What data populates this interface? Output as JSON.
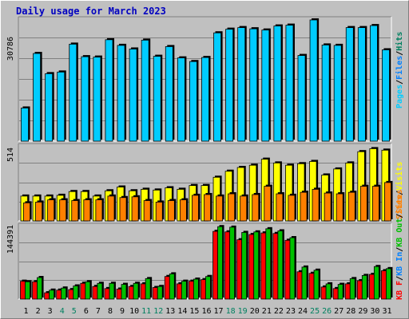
{
  "title": "Daily usage for March 2023",
  "colors": {
    "background": "#c0c0c0",
    "panel": "#c0c0c0",
    "gridline": "#808080",
    "pages": "#00ccff",
    "files": "#0080ff",
    "hits": "#008060",
    "visits": "#ffff00",
    "sites": "#ff8000",
    "kb_out": "#00c000",
    "kb_in": "#0080ff",
    "kb_f": "#ff0000",
    "title": "#0000c0",
    "weekend_day": "#008060",
    "weekday": "#000000"
  },
  "chart_data": [
    {
      "type": "bar",
      "panel": "top",
      "axis_label": "30786",
      "ymax": 30786,
      "legend": [
        "Pages",
        "/",
        "Files",
        "/",
        "Hits"
      ],
      "series": [
        {
          "name": "Pages",
          "values": [
            8200,
            21700,
            16700,
            17100,
            24000,
            20900,
            20800,
            25100,
            23700,
            22800,
            25000,
            21000,
            23400,
            20600,
            19700,
            20700,
            26800,
            27700,
            28100,
            27800,
            27500,
            28500,
            28700,
            21200,
            30000,
            23800,
            23700,
            28100,
            28100,
            28600,
            22600
          ]
        }
      ],
      "categories": [
        "1",
        "2",
        "3",
        "4",
        "5",
        "6",
        "7",
        "8",
        "9",
        "10",
        "11",
        "12",
        "13",
        "14",
        "15",
        "16",
        "17",
        "18",
        "19",
        "20",
        "21",
        "22",
        "23",
        "24",
        "25",
        "26",
        "27",
        "28",
        "29",
        "30",
        "31"
      ]
    },
    {
      "type": "bar",
      "panel": "middle",
      "axis_label": "514",
      "ymax": 514,
      "legend": [
        "Visits",
        "/",
        "Sites"
      ],
      "series": [
        {
          "name": "Visits",
          "values": [
            165,
            165,
            165,
            170,
            195,
            195,
            165,
            200,
            225,
            200,
            210,
            205,
            220,
            210,
            235,
            235,
            290,
            330,
            355,
            370,
            410,
            385,
            370,
            380,
            395,
            305,
            345,
            385,
            460,
            480,
            470
          ]
        },
        {
          "name": "Sites",
          "values": [
            120,
            125,
            140,
            140,
            135,
            140,
            140,
            165,
            155,
            160,
            135,
            125,
            135,
            140,
            170,
            175,
            165,
            180,
            165,
            175,
            230,
            180,
            170,
            190,
            210,
            185,
            180,
            190,
            230,
            230,
            255
          ]
        }
      ]
    },
    {
      "type": "bar",
      "panel": "bottom",
      "axis_label": "144391",
      "ymax": 144391,
      "legend": [
        "KB F",
        "/",
        "KB In",
        "/",
        "KB Out",
        "/",
        "Sites"
      ],
      "series": [
        {
          "name": "KB F",
          "values": [
            34000,
            33000,
            12000,
            17000,
            18000,
            30000,
            24000,
            20000,
            19000,
            24000,
            29000,
            22000,
            43000,
            29000,
            34000,
            37000,
            129000,
            128000,
            113000,
            123000,
            126000,
            125000,
            112000,
            52000,
            49000,
            23000,
            20000,
            29000,
            35000,
            47000,
            54000
          ]
        },
        {
          "name": "KB Out",
          "values": [
            33000,
            41000,
            17000,
            21000,
            25000,
            33000,
            30000,
            30000,
            28000,
            30000,
            39000,
            24000,
            48000,
            34000,
            38000,
            43000,
            138000,
            137000,
            127000,
            128000,
            134000,
            130000,
            117000,
            61000,
            55000,
            29000,
            28000,
            39000,
            45000,
            62000,
            58000
          ]
        }
      ]
    }
  ],
  "x_labels": [
    "1",
    "2",
    "3",
    "4",
    "5",
    "6",
    "7",
    "8",
    "9",
    "10",
    "11",
    "12",
    "13",
    "14",
    "15",
    "16",
    "17",
    "18",
    "19",
    "20",
    "21",
    "22",
    "23",
    "24",
    "25",
    "26",
    "27",
    "28",
    "29",
    "30",
    "31"
  ],
  "weekend_days": [
    4,
    5,
    11,
    12,
    18,
    19,
    25,
    26
  ]
}
